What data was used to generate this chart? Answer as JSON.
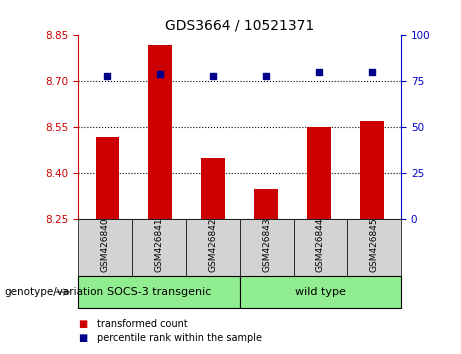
{
  "title": "GDS3664 / 10521371",
  "samples": [
    "GSM426840",
    "GSM426841",
    "GSM426842",
    "GSM426843",
    "GSM426844",
    "GSM426845"
  ],
  "red_values": [
    8.52,
    8.82,
    8.45,
    8.35,
    8.55,
    8.57
  ],
  "blue_values": [
    78,
    79,
    78,
    78,
    80,
    80
  ],
  "ylim_left": [
    8.25,
    8.85
  ],
  "ylim_right": [
    0,
    100
  ],
  "yticks_left": [
    8.25,
    8.4,
    8.55,
    8.7,
    8.85
  ],
  "yticks_right": [
    0,
    25,
    50,
    75,
    100
  ],
  "hlines": [
    8.7,
    8.55,
    8.4
  ],
  "bar_color": "#CC0000",
  "dot_color": "#00008B",
  "left_axis_color": "#CC0000",
  "right_axis_color": "#0000CC",
  "xlabel_label": "genotype/variation",
  "legend_red": "transformed count",
  "legend_blue": "percentile rank within the sample",
  "group_label_1": "SOCS-3 transgenic",
  "group_label_2": "wild type",
  "background_color": "#ffffff",
  "tick_area_color": "#d3d3d3",
  "green_color": "#90EE90"
}
